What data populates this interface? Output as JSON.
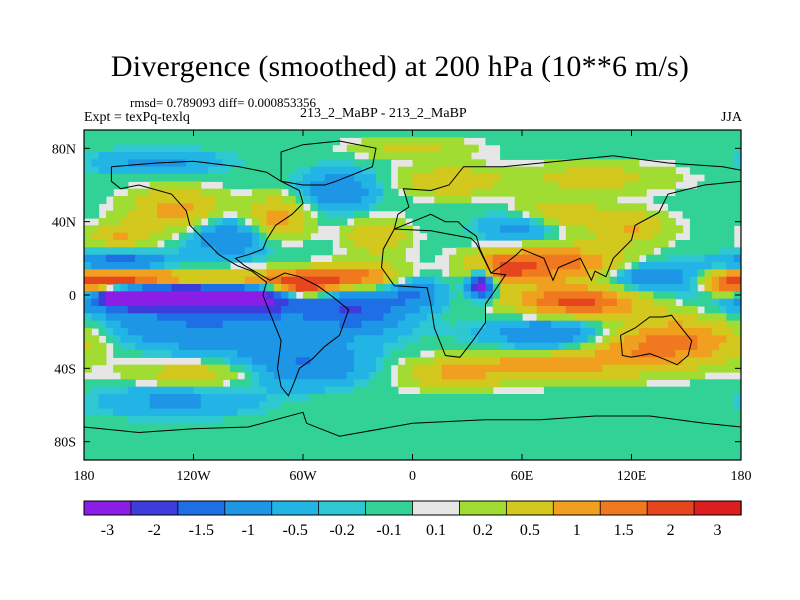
{
  "chart_data": {
    "type": "heatmap",
    "title": "Divergence (smoothed) at 200 hPa (10**6 m/s)",
    "stats_text": "rmsd= 0.789093 diff= 0.000853356",
    "left_label": "Expt = texPq-texlq",
    "center_label": "213_2_MaBP - 213_2_MaBP",
    "right_label": "JJA",
    "x_ticks": [
      {
        "value": -180,
        "label": "180"
      },
      {
        "value": -120,
        "label": "120W"
      },
      {
        "value": -60,
        "label": "60W"
      },
      {
        "value": 0,
        "label": "0"
      },
      {
        "value": 60,
        "label": "60E"
      },
      {
        "value": 120,
        "label": "120E"
      },
      {
        "value": 180,
        "label": "180"
      }
    ],
    "y_ticks": [
      {
        "value": 80,
        "label": "80N"
      },
      {
        "value": 40,
        "label": "40N"
      },
      {
        "value": 0,
        "label": "0"
      },
      {
        "value": -40,
        "label": "40S"
      },
      {
        "value": -80,
        "label": "80S"
      }
    ],
    "xlim": [
      -180,
      180
    ],
    "ylim": [
      -90,
      90
    ],
    "colorbar": {
      "levels": [
        "-3",
        "-2",
        "-1.5",
        "-1",
        "-0.5",
        "-0.2",
        "-0.1",
        "0.1",
        "0.2",
        "0.5",
        "1",
        "1.5",
        "2",
        "3"
      ],
      "colors": [
        "#8a1ee6",
        "#3c3cdc",
        "#1e6ee6",
        "#1e96e6",
        "#23b4e6",
        "#2dc8d2",
        "#32d296",
        "#e6e6e6",
        "#a0dc32",
        "#d2c81e",
        "#f0a01e",
        "#f0781e",
        "#e6461e",
        "#dc1e1e"
      ]
    },
    "features": [
      {
        "lon": -120,
        "lat": 0,
        "amp": -2.6,
        "sx": 38,
        "sy": 5
      },
      {
        "lon": -150,
        "lat": -4,
        "amp": -2.0,
        "sx": 22,
        "sy": 5
      },
      {
        "lon": -80,
        "lat": -6,
        "amp": -1.4,
        "sx": 25,
        "sy": 5
      },
      {
        "lon": -160,
        "lat": 16,
        "amp": -1.3,
        "sx": 20,
        "sy": 4
      },
      {
        "lon": -120,
        "lat": -20,
        "amp": -1.0,
        "sx": 55,
        "sy": 9
      },
      {
        "lon": -110,
        "lat": 6,
        "amp": 2.2,
        "sx": 45,
        "sy": 4
      },
      {
        "lon": -160,
        "lat": 6,
        "amp": 2.0,
        "sx": 18,
        "sy": 4
      },
      {
        "lon": -60,
        "lat": 2,
        "amp": 2.4,
        "sx": 12,
        "sy": 5
      },
      {
        "lon": -30,
        "lat": 8,
        "amp": 1.5,
        "sx": 18,
        "sy": 5
      },
      {
        "lon": -30,
        "lat": -10,
        "amp": -1.2,
        "sx": 18,
        "sy": 8
      },
      {
        "lon": 0,
        "lat": 0,
        "amp": -1.0,
        "sx": 12,
        "sy": 6
      },
      {
        "lon": 38,
        "lat": 4,
        "amp": -3.0,
        "sx": 5,
        "sy": 5
      },
      {
        "lon": 50,
        "lat": 12,
        "amp": 1.4,
        "sx": 12,
        "sy": 6
      },
      {
        "lon": 80,
        "lat": 15,
        "amp": 1.8,
        "sx": 28,
        "sy": 7
      },
      {
        "lon": 130,
        "lat": 8,
        "amp": -1.2,
        "sx": 20,
        "sy": 6
      },
      {
        "lon": 90,
        "lat": -6,
        "amp": 2.2,
        "sx": 25,
        "sy": 6
      },
      {
        "lon": 80,
        "lat": -25,
        "amp": -1.3,
        "sx": 25,
        "sy": 8
      },
      {
        "lon": 150,
        "lat": -25,
        "amp": 1.6,
        "sx": 30,
        "sy": 9
      },
      {
        "lon": 110,
        "lat": -35,
        "amp": 1.2,
        "sx": 30,
        "sy": 8
      },
      {
        "lon": 175,
        "lat": 3,
        "amp": 2.0,
        "sx": 10,
        "sy": 5
      },
      {
        "lon": 60,
        "lat": -40,
        "amp": 1.0,
        "sx": 25,
        "sy": 6
      },
      {
        "lon": -130,
        "lat": 45,
        "amp": 1.2,
        "sx": 18,
        "sy": 8
      },
      {
        "lon": -75,
        "lat": 40,
        "amp": 1.3,
        "sx": 12,
        "sy": 8
      },
      {
        "lon": -100,
        "lat": 30,
        "amp": -1.0,
        "sx": 15,
        "sy": 8
      },
      {
        "lon": -20,
        "lat": 30,
        "amp": 1.0,
        "sx": 12,
        "sy": 7
      },
      {
        "lon": -160,
        "lat": 30,
        "amp": 1.0,
        "sx": 12,
        "sy": 5
      },
      {
        "lon": 80,
        "lat": 42,
        "amp": 1.0,
        "sx": 18,
        "sy": 6
      },
      {
        "lon": 60,
        "lat": 35,
        "amp": -0.9,
        "sx": 15,
        "sy": 6
      },
      {
        "lon": 120,
        "lat": 35,
        "amp": 1.0,
        "sx": 15,
        "sy": 6
      },
      {
        "lon": -60,
        "lat": -40,
        "amp": -1.0,
        "sx": 25,
        "sy": 8
      },
      {
        "lon": -120,
        "lat": -45,
        "amp": 0.8,
        "sx": 25,
        "sy": 5
      },
      {
        "lon": 20,
        "lat": -45,
        "amp": 0.9,
        "sx": 20,
        "sy": 6
      },
      {
        "lon": -40,
        "lat": 55,
        "amp": -0.9,
        "sx": 15,
        "sy": 8
      },
      {
        "lon": 20,
        "lat": 60,
        "amp": 0.9,
        "sx": 20,
        "sy": 6
      },
      {
        "lon": 100,
        "lat": 62,
        "amp": 0.7,
        "sx": 30,
        "sy": 6
      },
      {
        "lon": -140,
        "lat": 70,
        "amp": -0.6,
        "sx": 25,
        "sy": 5
      },
      {
        "lon": -130,
        "lat": -60,
        "amp": -0.6,
        "sx": 30,
        "sy": 6
      },
      {
        "lon": 0,
        "lat": 78,
        "amp": 0.6,
        "sx": 25,
        "sy": 4
      }
    ],
    "coastlines": [
      [
        [
          -165,
          70
        ],
        [
          -140,
          72
        ],
        [
          -120,
          73
        ],
        [
          -95,
          70
        ],
        [
          -80,
          67
        ],
        [
          -72,
          62
        ],
        [
          -62,
          57
        ],
        [
          -60,
          50
        ],
        [
          -66,
          44
        ],
        [
          -75,
          38
        ],
        [
          -80,
          30
        ],
        [
          -82,
          25
        ],
        [
          -90,
          22
        ],
        [
          -97,
          20
        ],
        [
          -92,
          16
        ],
        [
          -85,
          12
        ],
        [
          -78,
          8
        ],
        [
          -70,
          12
        ],
        [
          -62,
          10
        ],
        [
          -52,
          5
        ],
        [
          -45,
          0
        ],
        [
          -35,
          -8
        ],
        [
          -40,
          -22
        ],
        [
          -48,
          -28
        ],
        [
          -55,
          -35
        ],
        [
          -62,
          -40
        ],
        [
          -65,
          -48
        ],
        [
          -68,
          -55
        ],
        [
          -72,
          -50
        ],
        [
          -74,
          -40
        ],
        [
          -72,
          -25
        ],
        [
          -78,
          -10
        ],
        [
          -82,
          0
        ],
        [
          -80,
          7
        ],
        [
          -88,
          13
        ],
        [
          -96,
          16
        ],
        [
          -106,
          22
        ],
        [
          -115,
          31
        ],
        [
          -122,
          38
        ],
        [
          -124,
          46
        ],
        [
          -132,
          55
        ],
        [
          -150,
          60
        ],
        [
          -160,
          58
        ],
        [
          -165,
          62
        ],
        [
          -165,
          70
        ]
      ],
      [
        [
          -72,
          62
        ],
        [
          -60,
          60
        ],
        [
          -48,
          60
        ],
        [
          -42,
          62
        ],
        [
          -22,
          70
        ],
        [
          -20,
          80
        ],
        [
          -40,
          84
        ],
        [
          -60,
          82
        ],
        [
          -72,
          78
        ],
        [
          -72,
          62
        ]
      ],
      [
        [
          -10,
          36
        ],
        [
          -16,
          25
        ],
        [
          -17,
          15
        ],
        [
          -10,
          5
        ],
        [
          8,
          4
        ],
        [
          10,
          -5
        ],
        [
          12,
          -18
        ],
        [
          18,
          -33
        ],
        [
          26,
          -34
        ],
        [
          33,
          -25
        ],
        [
          40,
          -15
        ],
        [
          40,
          -5
        ],
        [
          51,
          11
        ],
        [
          43,
          12
        ],
        [
          35,
          28
        ],
        [
          32,
          31
        ],
        [
          10,
          35
        ],
        [
          -10,
          36
        ]
      ],
      [
        [
          -10,
          36
        ],
        [
          -8,
          44
        ],
        [
          -2,
          48
        ],
        [
          -5,
          58
        ],
        [
          10,
          57
        ],
        [
          20,
          60
        ],
        [
          28,
          70
        ],
        [
          50,
          70
        ],
        [
          80,
          73
        ],
        [
          110,
          76
        ],
        [
          140,
          72
        ],
        [
          170,
          70
        ],
        [
          180,
          68
        ],
        [
          180,
          62
        ],
        [
          160,
          60
        ],
        [
          140,
          55
        ],
        [
          135,
          45
        ],
        [
          122,
          38
        ],
        [
          120,
          30
        ],
        [
          110,
          20
        ],
        [
          106,
          10
        ],
        [
          100,
          13
        ],
        [
          98,
          8
        ],
        [
          92,
          20
        ],
        [
          80,
          15
        ],
        [
          77,
          8
        ],
        [
          72,
          20
        ],
        [
          60,
          25
        ],
        [
          57,
          22
        ],
        [
          52,
          18
        ],
        [
          43,
          12
        ],
        [
          37,
          25
        ],
        [
          35,
          32
        ],
        [
          28,
          37
        ],
        [
          25,
          40
        ],
        [
          18,
          40
        ],
        [
          10,
          44
        ],
        [
          0,
          40
        ],
        [
          -10,
          36
        ]
      ],
      [
        [
          114,
          -22
        ],
        [
          122,
          -18
        ],
        [
          130,
          -12
        ],
        [
          137,
          -12
        ],
        [
          142,
          -11
        ],
        [
          145,
          -15
        ],
        [
          153,
          -25
        ],
        [
          151,
          -33
        ],
        [
          145,
          -38
        ],
        [
          138,
          -35
        ],
        [
          130,
          -32
        ],
        [
          120,
          -34
        ],
        [
          115,
          -33
        ],
        [
          114,
          -22
        ]
      ],
      [
        [
          -180,
          -72
        ],
        [
          -150,
          -75
        ],
        [
          -120,
          -73
        ],
        [
          -90,
          -72
        ],
        [
          -60,
          -64
        ],
        [
          -58,
          -70
        ],
        [
          -40,
          -77
        ],
        [
          0,
          -70
        ],
        [
          40,
          -68
        ],
        [
          70,
          -68
        ],
        [
          100,
          -66
        ],
        [
          130,
          -66
        ],
        [
          160,
          -70
        ],
        [
          180,
          -72
        ]
      ]
    ]
  }
}
